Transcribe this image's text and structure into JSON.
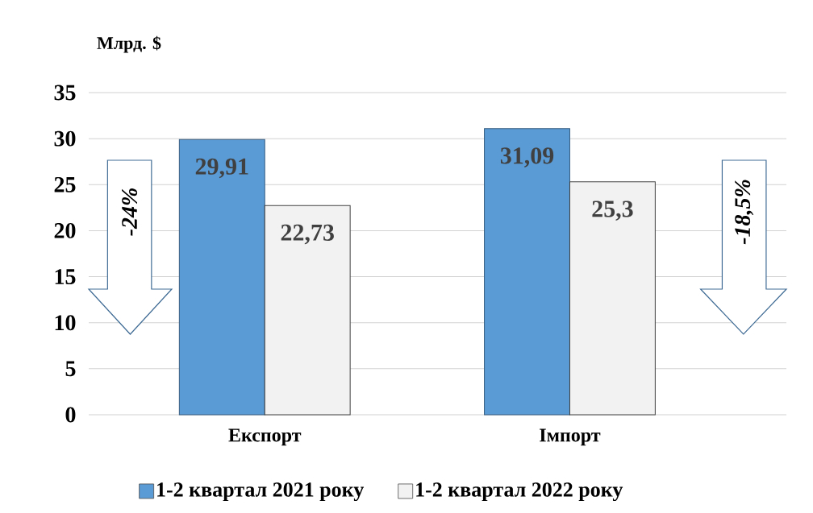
{
  "chart_data": {
    "type": "bar",
    "ylabel": "Млрд. $",
    "categories": [
      "Експорт",
      "Імпорт"
    ],
    "series": [
      {
        "name": "1-2 квартал 2021 року",
        "color": "#5b9bd5",
        "values": [
          29.91,
          31.09
        ],
        "value_labels": [
          "29,91",
          "31,09"
        ]
      },
      {
        "name": "1-2 квартал 2022 року",
        "color": "#f2f2f2",
        "values": [
          22.73,
          25.3
        ],
        "value_labels": [
          "22,73",
          "25,3"
        ]
      }
    ],
    "ylim": [
      0,
      35
    ],
    "yticks": [
      0,
      5,
      10,
      15,
      20,
      25,
      30,
      35
    ],
    "grid": "y",
    "legend": "bottom",
    "annotations": [
      "-24%",
      "-18,5%"
    ]
  }
}
